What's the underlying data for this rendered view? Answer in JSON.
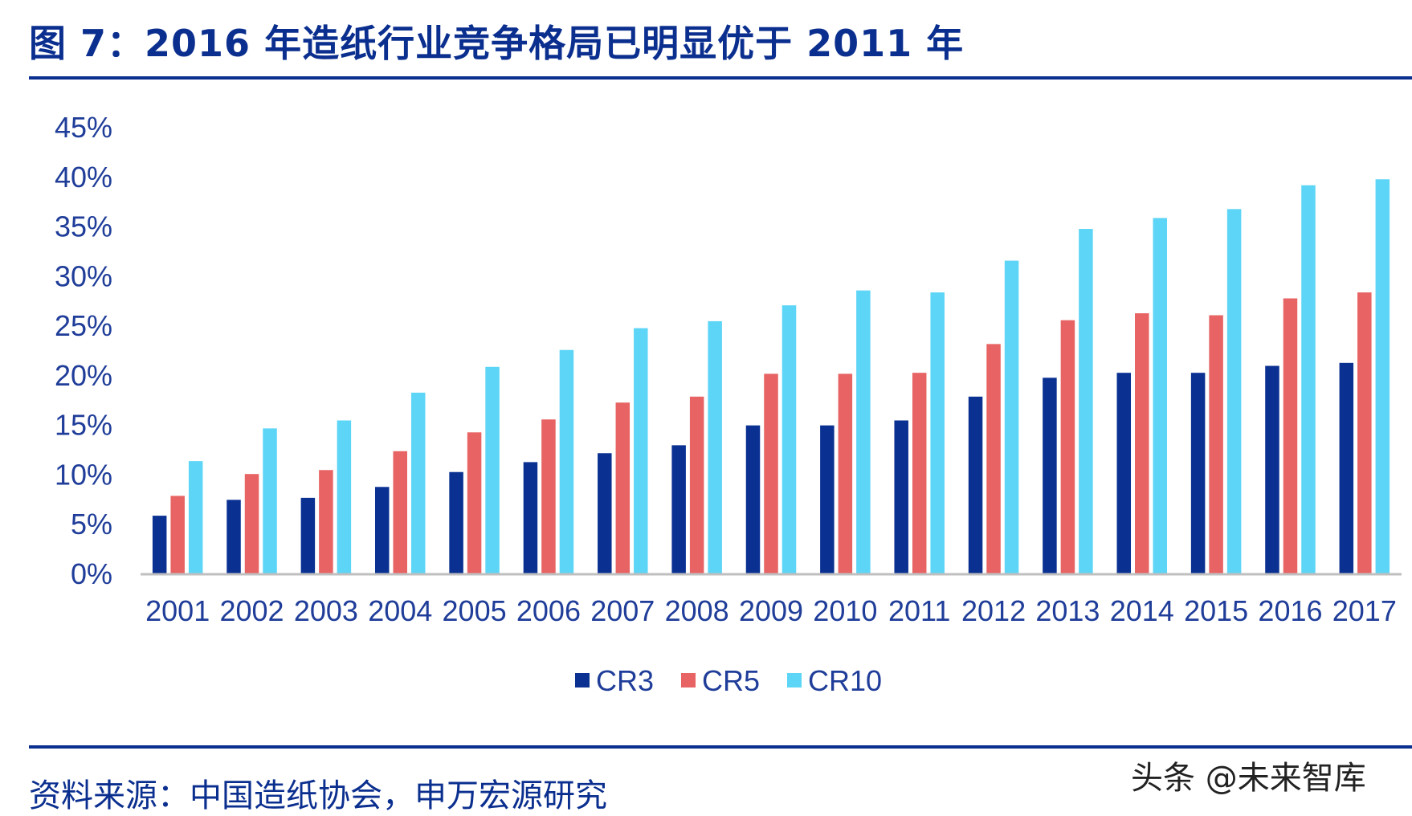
{
  "header": {
    "title": "图 7：2016 年造纸行业竞争格局已明显优于 2011 年"
  },
  "footer": {
    "source": "资料来源：中国造纸协会，申万宏源研究",
    "watermark": "头条 @未来智库"
  },
  "colors": {
    "title": "#0B2F8F",
    "axis_text": "#1F3D99",
    "axis_line": "#BFBFBF"
  },
  "chart_data": {
    "type": "bar",
    "categories": [
      "2001",
      "2002",
      "2003",
      "2004",
      "2005",
      "2006",
      "2007",
      "2008",
      "2009",
      "2010",
      "2011",
      "2012",
      "2013",
      "2014",
      "2015",
      "2016",
      "2017"
    ],
    "series": [
      {
        "name": "CR3",
        "color": "#0A3192",
        "values": [
          5.9,
          7.5,
          7.7,
          8.8,
          10.3,
          11.3,
          12.2,
          13.0,
          15.0,
          15.0,
          15.5,
          17.9,
          19.8,
          20.3,
          20.3,
          21.0,
          21.3
        ]
      },
      {
        "name": "CR5",
        "color": "#E86363",
        "values": [
          7.9,
          10.1,
          10.5,
          12.4,
          14.3,
          15.6,
          17.3,
          17.9,
          20.2,
          20.2,
          20.3,
          23.2,
          25.6,
          26.3,
          26.1,
          27.8,
          28.4
        ]
      },
      {
        "name": "CR10",
        "color": "#5DD5F7",
        "values": [
          11.4,
          14.7,
          15.5,
          18.3,
          20.9,
          22.6,
          24.8,
          25.5,
          27.1,
          28.6,
          28.4,
          31.6,
          34.8,
          35.9,
          36.8,
          39.2,
          39.8
        ]
      }
    ],
    "y_ticks": [
      "0%",
      "5%",
      "10%",
      "15%",
      "20%",
      "25%",
      "30%",
      "35%",
      "40%",
      "45%"
    ],
    "ylim": [
      0,
      45
    ],
    "grid": false,
    "legend_position": "bottom-center"
  }
}
